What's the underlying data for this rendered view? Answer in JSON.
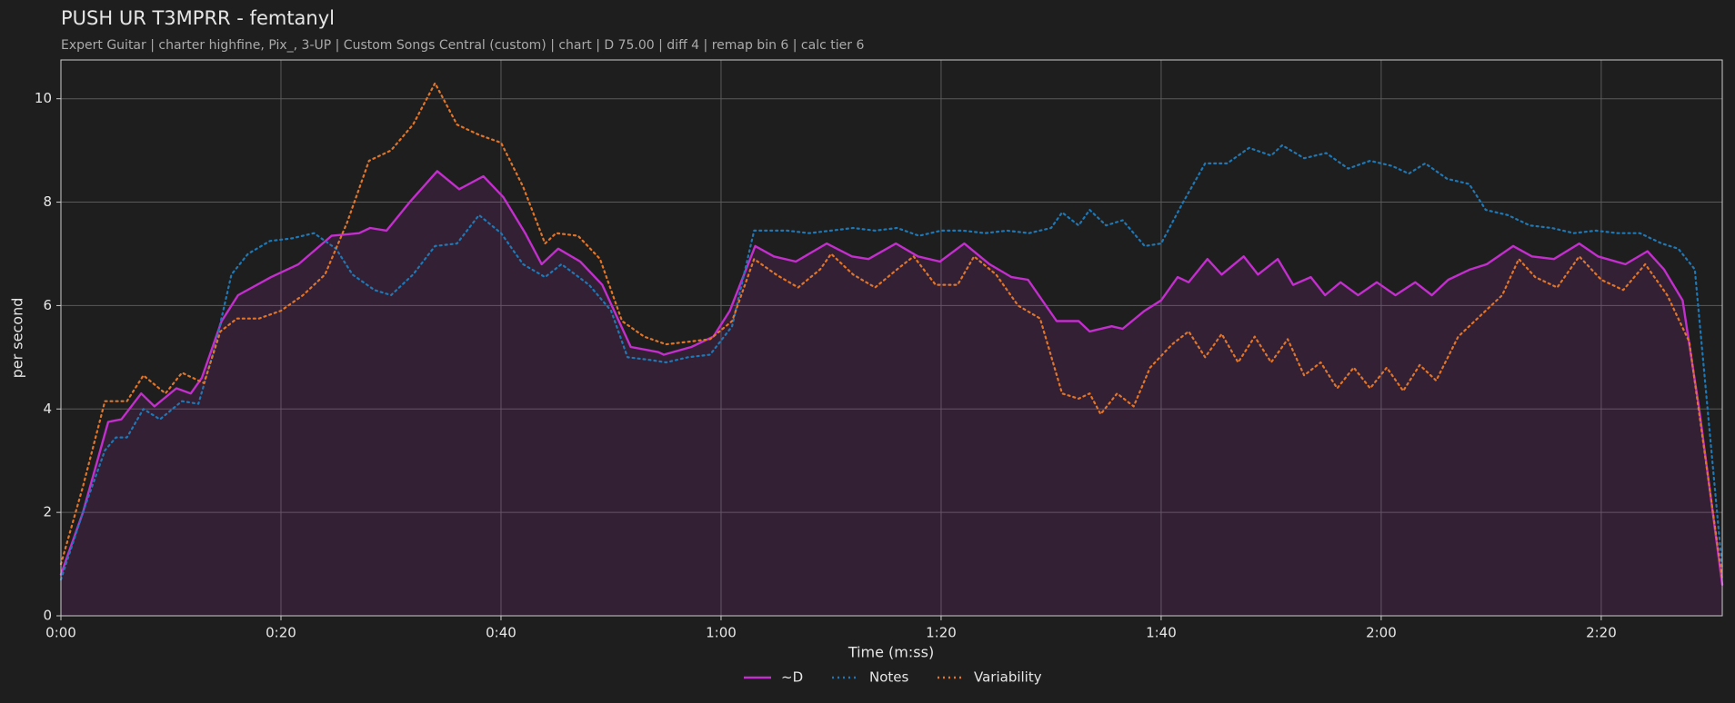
{
  "chart_data": {
    "type": "line",
    "title": "PUSH UR T3MPRR - femtanyl",
    "subtitle": "Expert Guitar  |  charter highfine, Pix_, 3-UP  |  Custom Songs Central (custom)  |  chart  |  D 75.00  |  diff 4  |  remap bin 6  |  calc tier 6",
    "xlabel": "Time (m:ss)",
    "ylabel": "per second",
    "xlim": [
      0,
      151
    ],
    "ylim": [
      0,
      10.75
    ],
    "xticks": [
      {
        "value": 0,
        "label": "0:00"
      },
      {
        "value": 20,
        "label": "0:20"
      },
      {
        "value": 40,
        "label": "0:40"
      },
      {
        "value": 60,
        "label": "1:00"
      },
      {
        "value": 80,
        "label": "1:20"
      },
      {
        "value": 100,
        "label": "1:40"
      },
      {
        "value": 120,
        "label": "2:00"
      },
      {
        "value": 140,
        "label": "2:20"
      }
    ],
    "yticks": [
      0,
      2,
      4,
      6,
      8,
      10
    ],
    "grid": true,
    "legend": "bottom",
    "series": [
      {
        "name": "~D",
        "color": "#c22fcc",
        "style": "solid",
        "fill": true,
        "x": [
          0,
          2,
          4.3,
          5.5,
          7.3,
          8.5,
          10.5,
          11.8,
          12.8,
          14.6,
          16.1,
          19.1,
          21.6,
          24.6,
          27.1,
          28.1,
          29.6,
          31.7,
          34.2,
          36.2,
          38.4,
          40.2,
          42.2,
          43.7,
          45.2,
          47.2,
          49.2,
          51.8,
          54.3,
          54.8,
          57.3,
          59.3,
          60.8,
          63.1,
          64.8,
          66.8,
          69.6,
          71.9,
          73.4,
          75.9,
          77.9,
          79.9,
          82.1,
          84.4,
          86.4,
          87.9,
          90.5,
          92.5,
          93.5,
          95.5,
          96.5,
          98.5,
          100,
          101.5,
          102.5,
          104.2,
          105.5,
          107.5,
          108.8,
          110.6,
          112,
          113.6,
          114.9,
          116.3,
          117.9,
          119.6,
          121.3,
          123.1,
          124.6,
          126.1,
          128.1,
          129.6,
          132,
          133.7,
          135.7,
          138,
          139.7,
          142.2,
          144.2,
          145.7,
          147.4,
          148.9,
          151
        ],
        "values": [
          0.8,
          2.0,
          3.75,
          3.8,
          4.3,
          4.05,
          4.4,
          4.3,
          4.6,
          5.7,
          6.2,
          6.55,
          6.8,
          7.35,
          7.4,
          7.5,
          7.45,
          8.0,
          8.6,
          8.25,
          8.5,
          8.1,
          7.4,
          6.8,
          7.1,
          6.85,
          6.4,
          5.2,
          5.1,
          5.05,
          5.2,
          5.4,
          5.9,
          7.15,
          6.95,
          6.85,
          7.2,
          6.95,
          6.9,
          7.2,
          6.95,
          6.85,
          7.2,
          6.8,
          6.55,
          6.5,
          5.7,
          5.7,
          5.5,
          5.6,
          5.55,
          5.9,
          6.1,
          6.55,
          6.45,
          6.9,
          6.6,
          6.95,
          6.6,
          6.9,
          6.4,
          6.55,
          6.2,
          6.45,
          6.2,
          6.45,
          6.2,
          6.45,
          6.2,
          6.5,
          6.7,
          6.8,
          7.15,
          6.95,
          6.9,
          7.2,
          6.95,
          6.8,
          7.05,
          6.7,
          6.1,
          4.0,
          0.6
        ]
      },
      {
        "name": "Notes",
        "color": "#1f77b4",
        "style": "dotted",
        "x": [
          0,
          2,
          4,
          5,
          6,
          7.5,
          9,
          11,
          12.5,
          14,
          15.5,
          17,
          19,
          21,
          23,
          25,
          26.5,
          28.5,
          30,
          32,
          34,
          36,
          38,
          40,
          42,
          44,
          45.5,
          48,
          50,
          51.5,
          53.5,
          55,
          57,
          59,
          61,
          63,
          66,
          68,
          70,
          72,
          74,
          76,
          78,
          80,
          82,
          84,
          86,
          88,
          90,
          91,
          92.5,
          93.5,
          95,
          96.5,
          98.5,
          100,
          102,
          104,
          106,
          108,
          110,
          111,
          113,
          115,
          117,
          119,
          121,
          122.5,
          124,
          126,
          128,
          129.5,
          131.5,
          133.5,
          135.5,
          137.5,
          139.5,
          141.5,
          143.5,
          145.5,
          147,
          148.5,
          151
        ],
        "values": [
          0.7,
          2.0,
          3.2,
          3.45,
          3.45,
          4.0,
          3.8,
          4.15,
          4.1,
          5.2,
          6.6,
          7.0,
          7.25,
          7.3,
          7.4,
          7.1,
          6.6,
          6.3,
          6.2,
          6.6,
          7.15,
          7.2,
          7.75,
          7.4,
          6.8,
          6.55,
          6.8,
          6.4,
          5.9,
          5.0,
          4.95,
          4.9,
          5.0,
          5.05,
          5.6,
          7.45,
          7.45,
          7.4,
          7.45,
          7.5,
          7.45,
          7.5,
          7.35,
          7.45,
          7.45,
          7.4,
          7.45,
          7.4,
          7.5,
          7.8,
          7.55,
          7.85,
          7.55,
          7.65,
          7.15,
          7.2,
          8.0,
          8.75,
          8.75,
          9.05,
          8.9,
          9.1,
          8.85,
          8.95,
          8.65,
          8.8,
          8.7,
          8.55,
          8.75,
          8.45,
          8.35,
          7.85,
          7.75,
          7.55,
          7.5,
          7.4,
          7.45,
          7.4,
          7.4,
          7.2,
          7.1,
          6.7,
          0.9
        ]
      },
      {
        "name": "Variability",
        "color": "#e0752a",
        "style": "dotted",
        "x": [
          0,
          2,
          4,
          6,
          7.5,
          9.5,
          11,
          13,
          14.5,
          16,
          18,
          20,
          22,
          24,
          26,
          28,
          30,
          32,
          34,
          36,
          38,
          40,
          42,
          44,
          45,
          47,
          49,
          51,
          53,
          55,
          57,
          59,
          61,
          63,
          65,
          67,
          69,
          70,
          72,
          74,
          76,
          77.5,
          79.5,
          81.5,
          83,
          85,
          87,
          89,
          91,
          92.5,
          93.5,
          94.5,
          96,
          97.5,
          99,
          101,
          102.5,
          104,
          105.5,
          107,
          108.5,
          110,
          111.5,
          113,
          114.5,
          116,
          117.5,
          119,
          120.5,
          122,
          123.5,
          125,
          127,
          129,
          131,
          132.5,
          134,
          136,
          138,
          140,
          142,
          144,
          146,
          148,
          151
        ],
        "values": [
          1.0,
          2.5,
          4.15,
          4.15,
          4.65,
          4.3,
          4.7,
          4.5,
          5.5,
          5.75,
          5.75,
          5.9,
          6.2,
          6.6,
          7.6,
          8.8,
          9.0,
          9.5,
          10.3,
          9.5,
          9.3,
          9.15,
          8.3,
          7.2,
          7.4,
          7.35,
          6.9,
          5.7,
          5.4,
          5.25,
          5.3,
          5.35,
          5.7,
          6.9,
          6.6,
          6.35,
          6.7,
          7.0,
          6.6,
          6.35,
          6.7,
          6.95,
          6.4,
          6.4,
          6.95,
          6.6,
          6.0,
          5.75,
          4.3,
          4.2,
          4.3,
          3.9,
          4.3,
          4.05,
          4.8,
          5.25,
          5.5,
          5.0,
          5.45,
          4.9,
          5.4,
          4.9,
          5.35,
          4.65,
          4.9,
          4.4,
          4.8,
          4.4,
          4.8,
          4.35,
          4.85,
          4.55,
          5.4,
          5.8,
          6.2,
          6.9,
          6.55,
          6.35,
          6.95,
          6.5,
          6.3,
          6.8,
          6.2,
          5.3,
          0.7
        ]
      }
    ]
  }
}
